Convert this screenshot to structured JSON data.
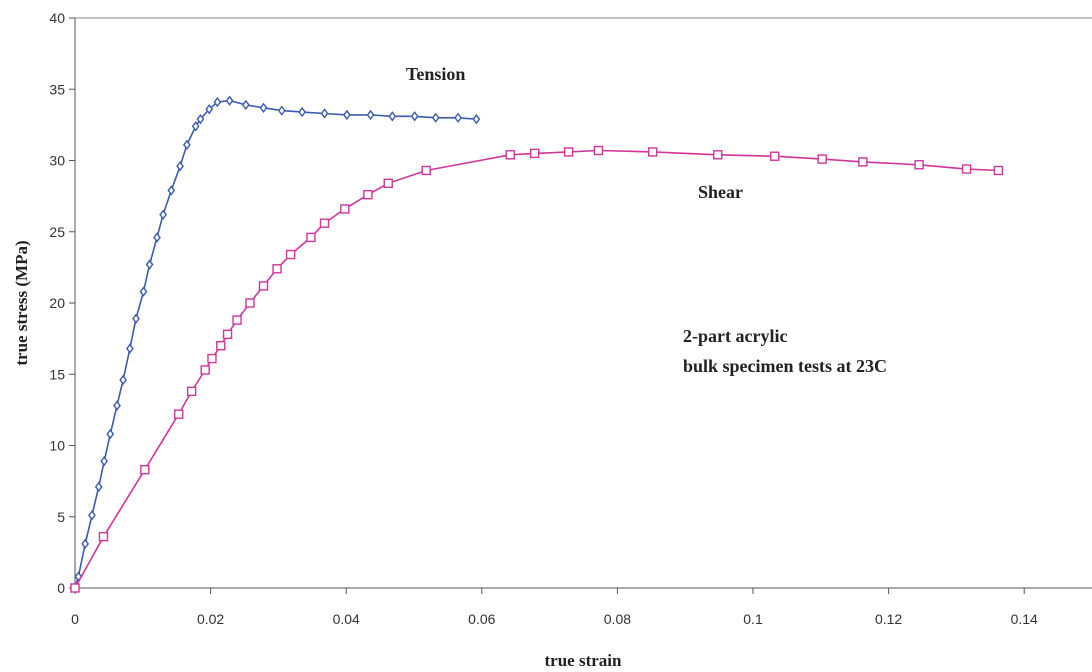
{
  "chart_data": {
    "type": "line",
    "xlabel": "true strain",
    "ylabel": "true stress (MPa)",
    "xlim": [
      0,
      0.15
    ],
    "ylim": [
      0,
      40
    ],
    "x_ticks": [
      "0",
      "0.02",
      "0.04",
      "0.06",
      "0.08",
      "0.1",
      "0.12",
      "0.14"
    ],
    "y_ticks": [
      "0",
      "5",
      "10",
      "15",
      "20",
      "25",
      "30",
      "35",
      "40"
    ],
    "grid": false,
    "annotations": {
      "tension": "Tension",
      "shear": "Shear",
      "note_line1": "2-part acrylic",
      "note_line2": "bulk specimen tests at 23C"
    },
    "series": [
      {
        "color": "#3b5bb0",
        "marker": "diamond",
        "x": [
          0,
          0.0005,
          0.0015,
          0.0025,
          0.0035,
          0.0043,
          0.0052,
          0.0062,
          0.0071,
          0.0081,
          0.009,
          0.0101,
          0.011,
          0.0121,
          0.013,
          0.0142,
          0.0155,
          0.0165,
          0.0178,
          0.0185,
          0.0198,
          0.021,
          0.0228,
          0.0252,
          0.0278,
          0.0305,
          0.0335,
          0.0368,
          0.0401,
          0.0436,
          0.0468,
          0.0501,
          0.0532,
          0.0565,
          0.0592
        ],
        "y": [
          0,
          0.8,
          3.1,
          5.1,
          7.1,
          8.9,
          10.8,
          12.8,
          14.6,
          16.8,
          18.9,
          20.8,
          22.7,
          24.6,
          26.2,
          27.9,
          29.6,
          31.1,
          32.4,
          32.9,
          33.6,
          34.1,
          34.2,
          33.9,
          33.7,
          33.5,
          33.4,
          33.3,
          33.2,
          33.2,
          33.1,
          33.1,
          33.0,
          33.0,
          32.9
        ]
      },
      {
        "color": "#d0369a",
        "marker": "square",
        "x": [
          0,
          0.0042,
          0.0103,
          0.0153,
          0.0172,
          0.0192,
          0.0202,
          0.0215,
          0.0225,
          0.0239,
          0.0258,
          0.0278,
          0.0298,
          0.0318,
          0.0348,
          0.0368,
          0.0398,
          0.0432,
          0.0462,
          0.0518,
          0.0642,
          0.0678,
          0.0728,
          0.0772,
          0.0852,
          0.0948,
          0.1032,
          0.1102,
          0.1162,
          0.1245,
          0.1315,
          0.1362
        ],
        "y": [
          0,
          3.6,
          8.3,
          12.2,
          13.8,
          15.3,
          16.1,
          17.0,
          17.8,
          18.8,
          20.0,
          21.2,
          22.4,
          23.4,
          24.6,
          25.6,
          26.6,
          27.6,
          28.4,
          29.3,
          30.4,
          30.5,
          30.6,
          30.7,
          30.6,
          30.4,
          30.3,
          30.1,
          29.9,
          29.7,
          29.4,
          29.3
        ]
      }
    ]
  }
}
